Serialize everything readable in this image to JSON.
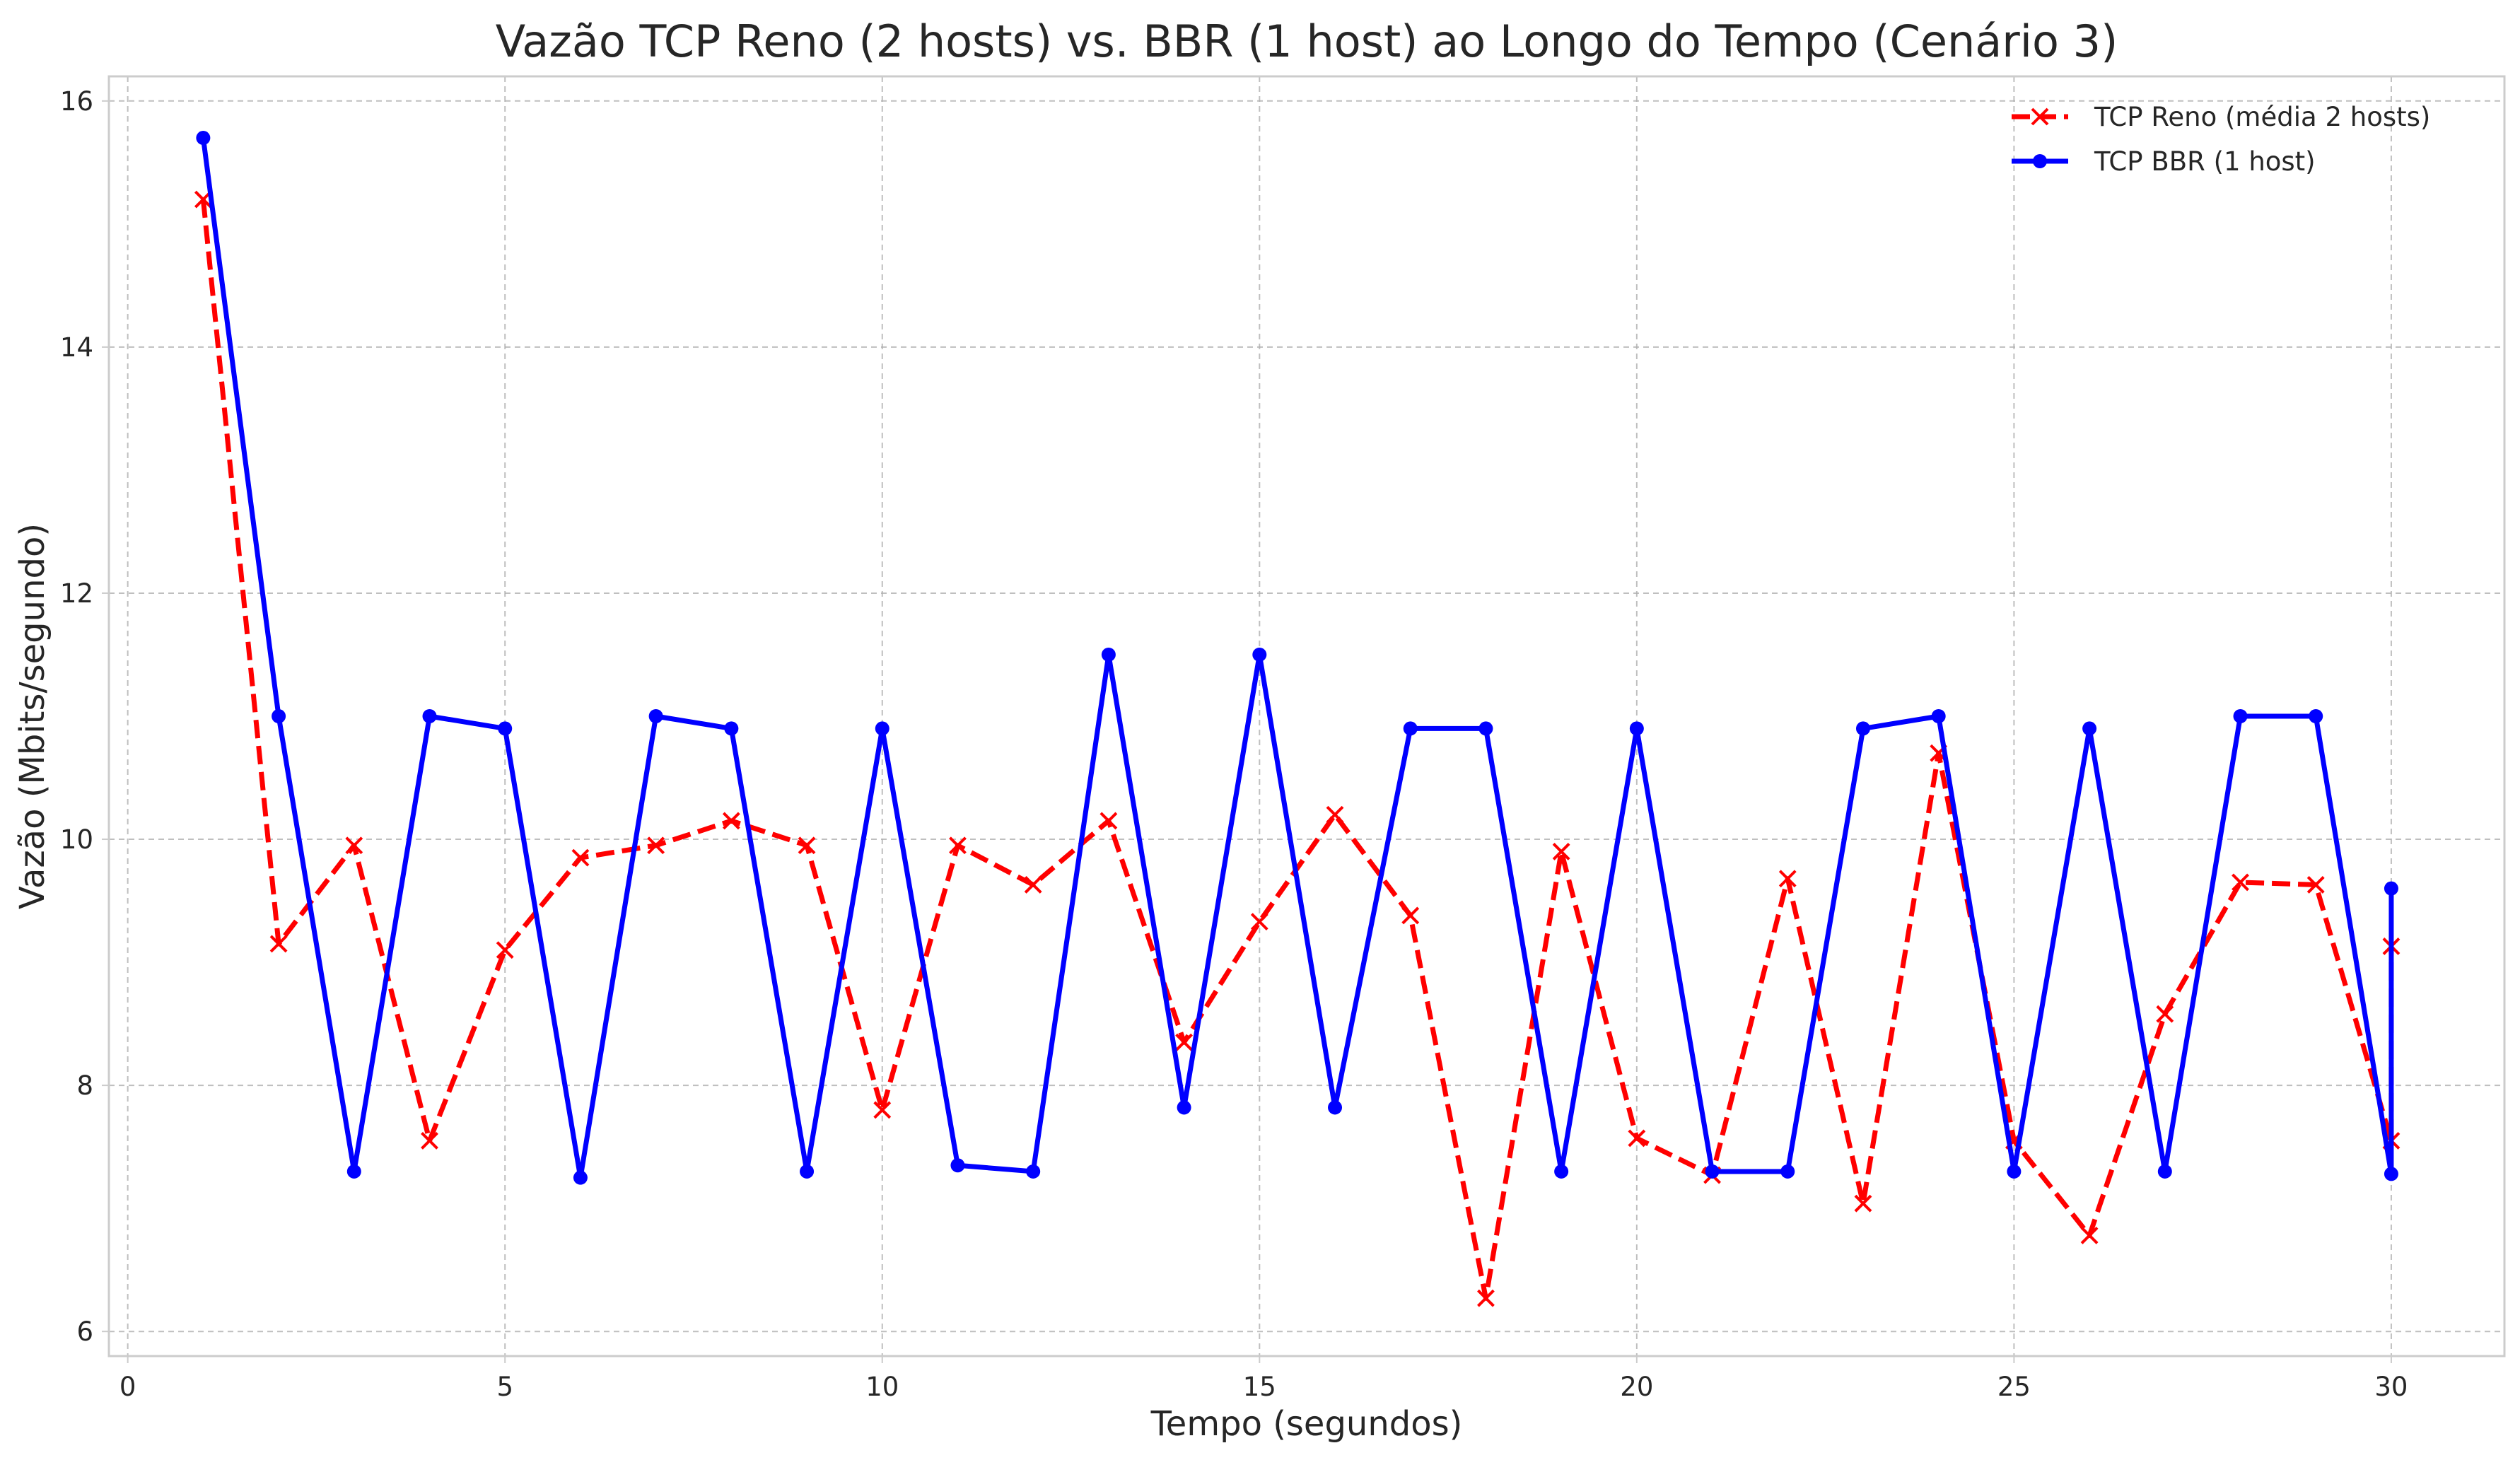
{
  "chart_data": {
    "type": "line",
    "title": "Vazão TCP Reno (2 hosts) vs. BBR (1 host) ao Longo do Tempo (Cenário 3)",
    "xlabel": "Tempo (segundos)",
    "ylabel": "Vazão (Mbits/segundo)",
    "xlim": [
      -0.25,
      31.5
    ],
    "ylim": [
      5.8,
      16.2
    ],
    "xticks": [
      0,
      5,
      10,
      15,
      20,
      25,
      30
    ],
    "yticks": [
      6,
      8,
      10,
      12,
      14,
      16
    ],
    "grid": true,
    "legend_position": "top-right",
    "series": [
      {
        "name": "TCP Reno (média 2 hosts)",
        "color": "#ff0000",
        "line_style": "dashed",
        "marker": "x",
        "x": [
          1,
          2,
          3,
          4,
          5,
          6,
          7,
          8,
          9,
          10,
          11,
          12,
          13,
          14,
          15,
          16,
          17,
          18,
          19,
          20,
          21,
          22,
          23,
          24,
          25,
          26,
          27,
          28,
          29,
          30,
          30
        ],
        "y": [
          15.2,
          9.15,
          9.95,
          7.55,
          9.1,
          9.85,
          9.95,
          10.15,
          9.95,
          7.8,
          9.95,
          9.63,
          10.15,
          8.35,
          9.33,
          10.2,
          9.38,
          6.27,
          9.9,
          7.57,
          7.27,
          9.68,
          7.04,
          10.7,
          7.55,
          6.78,
          8.58,
          9.65,
          9.63,
          7.55,
          9.13
        ]
      },
      {
        "name": "TCP BBR (1 host)",
        "color": "#0000ff",
        "line_style": "solid",
        "marker": "circle",
        "x": [
          1,
          2,
          3,
          4,
          5,
          6,
          7,
          8,
          9,
          10,
          11,
          12,
          13,
          14,
          15,
          16,
          17,
          18,
          19,
          20,
          21,
          22,
          23,
          24,
          25,
          26,
          27,
          28,
          29,
          30,
          30
        ],
        "y": [
          15.7,
          11.0,
          7.3,
          11.0,
          10.9,
          7.25,
          11.0,
          10.9,
          7.3,
          10.9,
          7.35,
          7.3,
          11.5,
          7.82,
          11.5,
          7.82,
          10.9,
          10.9,
          7.3,
          10.9,
          7.3,
          7.3,
          10.9,
          11.0,
          7.3,
          10.9,
          7.3,
          11.0,
          11.0,
          7.28,
          9.6
        ]
      }
    ]
  }
}
